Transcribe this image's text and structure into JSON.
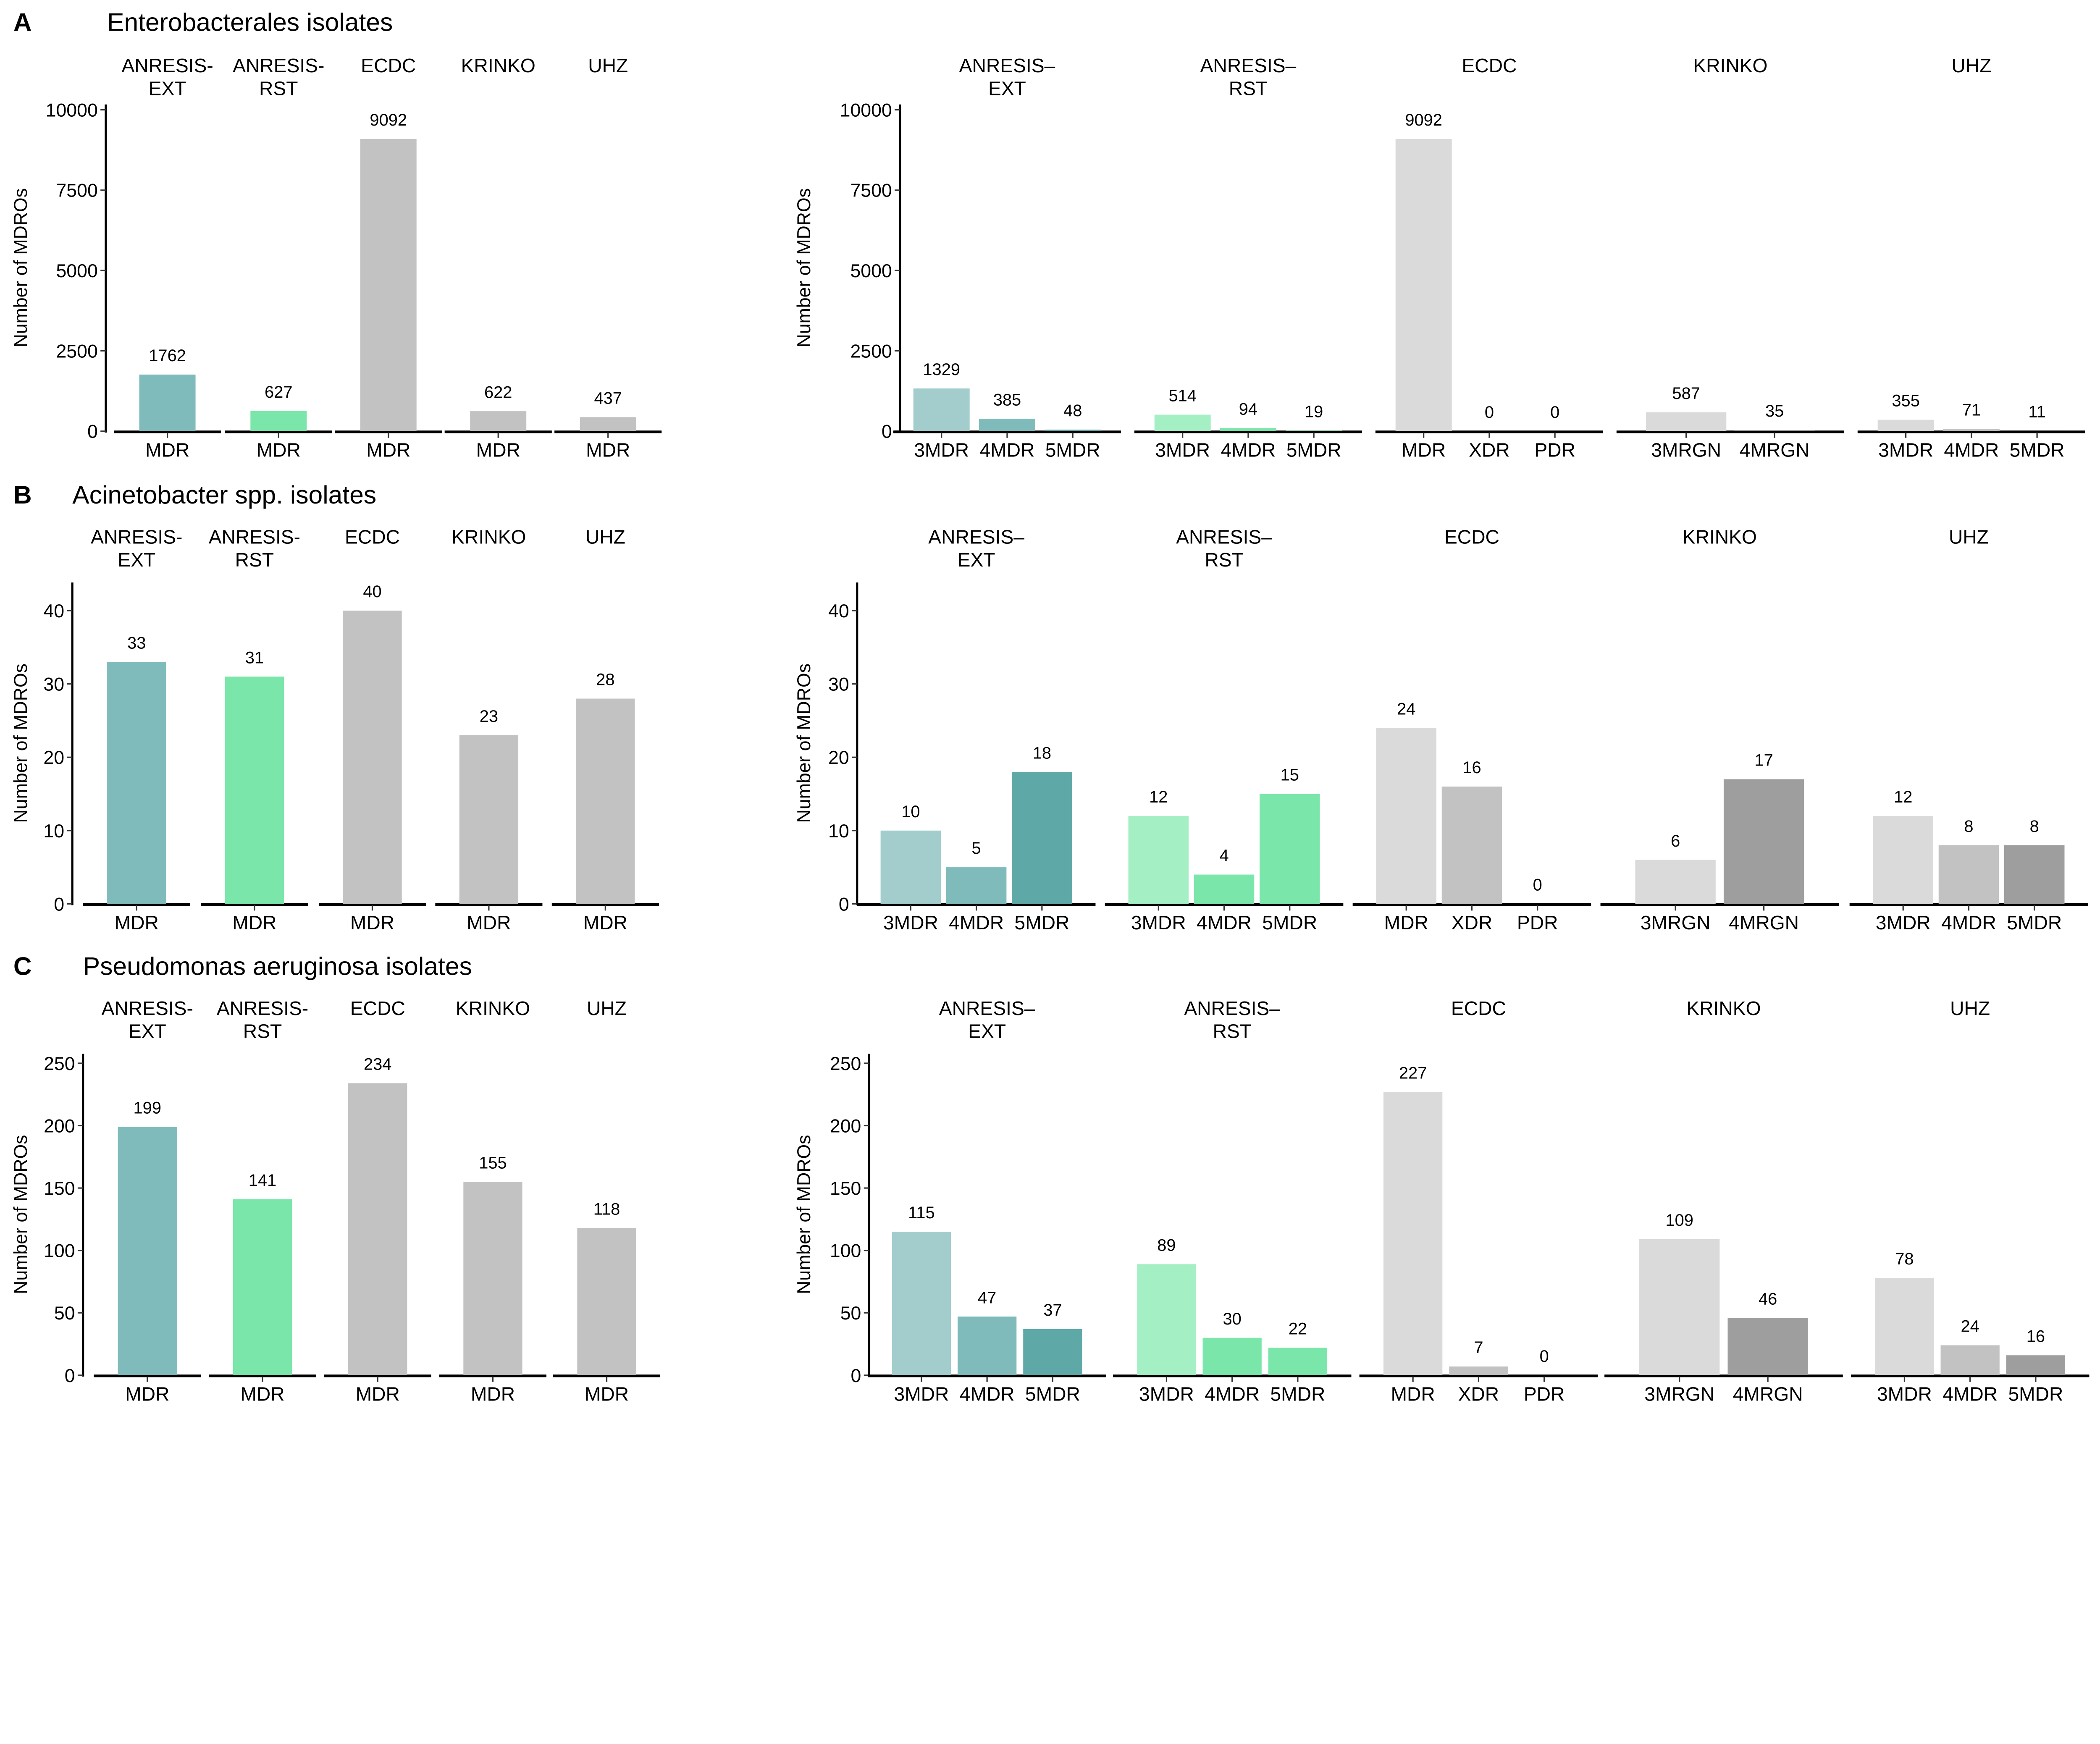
{
  "chart_data": [
    {
      "panel": "A",
      "title": "Enterobacterales isolates",
      "type": "bar",
      "ylabel": "Number of MDROs",
      "ylim": [
        0,
        10000
      ],
      "yticks": [
        0,
        2500,
        5000,
        7500,
        10000
      ],
      "left": {
        "facets": [
          {
            "label": [
              "ANRESIS-",
              "EXT"
            ],
            "bars": [
              {
                "cat": "MDR",
                "value": 1762,
                "color": "#80BBBB"
              }
            ]
          },
          {
            "label": [
              "ANRESIS-",
              "RST"
            ],
            "bars": [
              {
                "cat": "MDR",
                "value": 627,
                "color": "#7AE6AA"
              }
            ]
          },
          {
            "label": [
              "ECDC"
            ],
            "bars": [
              {
                "cat": "MDR",
                "value": 9092,
                "color": "#C2C2C2"
              }
            ]
          },
          {
            "label": [
              "KRINKO"
            ],
            "bars": [
              {
                "cat": "MDR",
                "value": 622,
                "color": "#C2C2C2"
              }
            ]
          },
          {
            "label": [
              "UHZ"
            ],
            "bars": [
              {
                "cat": "MDR",
                "value": 437,
                "color": "#C2C2C2"
              }
            ]
          }
        ]
      },
      "right": {
        "facets": [
          {
            "label": [
              "ANRESIS–",
              "EXT"
            ],
            "bars": [
              {
                "cat": "3MDR",
                "value": 1329,
                "color": "#A2CDCC"
              },
              {
                "cat": "4MDR",
                "value": 385,
                "color": "#80BBBB"
              },
              {
                "cat": "5MDR",
                "value": 48,
                "color": "#5FA8A8"
              }
            ]
          },
          {
            "label": [
              "ANRESIS–",
              "RST"
            ],
            "bars": [
              {
                "cat": "3MDR",
                "value": 514,
                "color": "#A5EFC5"
              },
              {
                "cat": "4MDR",
                "value": 94,
                "color": "#7AE6AA"
              },
              {
                "cat": "5MDR",
                "value": 19,
                "color": "#7AE6AA"
              }
            ]
          },
          {
            "label": [
              "ECDC"
            ],
            "bars": [
              {
                "cat": "MDR",
                "value": 9092,
                "color": "#DADADA"
              },
              {
                "cat": "XDR",
                "value": 0,
                "color": "#C2C2C2"
              },
              {
                "cat": "PDR",
                "value": 0,
                "color": "#9E9E9E"
              }
            ]
          },
          {
            "label": [
              "KRINKO"
            ],
            "bars": [
              {
                "cat": "3MRGN",
                "value": 587,
                "color": "#DADADA"
              },
              {
                "cat": "4MRGN",
                "value": 35,
                "color": "#9E9E9E"
              }
            ]
          },
          {
            "label": [
              "UHZ"
            ],
            "bars": [
              {
                "cat": "3MDR",
                "value": 355,
                "color": "#DADADA"
              },
              {
                "cat": "4MDR",
                "value": 71,
                "color": "#C2C2C2"
              },
              {
                "cat": "5MDR",
                "value": 11,
                "color": "#9E9E9E"
              }
            ]
          }
        ]
      }
    },
    {
      "panel": "B",
      "title": "Acinetobacter spp. isolates",
      "type": "bar",
      "ylabel": "Number of MDROs",
      "ylim": [
        0,
        44
      ],
      "yticks": [
        0,
        10,
        20,
        30,
        40
      ],
      "left": {
        "facets": [
          {
            "label": [
              "ANRESIS-",
              "EXT"
            ],
            "bars": [
              {
                "cat": "MDR",
                "value": 33,
                "color": "#80BBBB"
              }
            ]
          },
          {
            "label": [
              "ANRESIS-",
              "RST"
            ],
            "bars": [
              {
                "cat": "MDR",
                "value": 31,
                "color": "#7AE6AA"
              }
            ]
          },
          {
            "label": [
              "ECDC"
            ],
            "bars": [
              {
                "cat": "MDR",
                "value": 40,
                "color": "#C2C2C2"
              }
            ]
          },
          {
            "label": [
              "KRINKO"
            ],
            "bars": [
              {
                "cat": "MDR",
                "value": 23,
                "color": "#C2C2C2"
              }
            ]
          },
          {
            "label": [
              "UHZ"
            ],
            "bars": [
              {
                "cat": "MDR",
                "value": 28,
                "color": "#C2C2C2"
              }
            ]
          }
        ]
      },
      "right": {
        "facets": [
          {
            "label": [
              "ANRESIS–",
              "EXT"
            ],
            "bars": [
              {
                "cat": "3MDR",
                "value": 10,
                "color": "#A2CDCC"
              },
              {
                "cat": "4MDR",
                "value": 5,
                "color": "#80BBBB"
              },
              {
                "cat": "5MDR",
                "value": 18,
                "color": "#5FA8A8"
              }
            ]
          },
          {
            "label": [
              "ANRESIS–",
              "RST"
            ],
            "bars": [
              {
                "cat": "3MDR",
                "value": 12,
                "color": "#A5EFC5"
              },
              {
                "cat": "4MDR",
                "value": 4,
                "color": "#7AE6AA"
              },
              {
                "cat": "5MDR",
                "value": 15,
                "color": "#7AE6AA"
              }
            ]
          },
          {
            "label": [
              "ECDC"
            ],
            "bars": [
              {
                "cat": "MDR",
                "value": 24,
                "color": "#DADADA"
              },
              {
                "cat": "XDR",
                "value": 16,
                "color": "#C2C2C2"
              },
              {
                "cat": "PDR",
                "value": 0,
                "color": "#9E9E9E"
              }
            ]
          },
          {
            "label": [
              "KRINKO"
            ],
            "bars": [
              {
                "cat": "3MRGN",
                "value": 6,
                "color": "#DADADA"
              },
              {
                "cat": "4MRGN",
                "value": 17,
                "color": "#9E9E9E"
              }
            ]
          },
          {
            "label": [
              "UHZ"
            ],
            "bars": [
              {
                "cat": "3MDR",
                "value": 12,
                "color": "#DADADA"
              },
              {
                "cat": "4MDR",
                "value": 8,
                "color": "#C2C2C2"
              },
              {
                "cat": "5MDR",
                "value": 8,
                "color": "#9E9E9E"
              }
            ]
          }
        ]
      }
    },
    {
      "panel": "C",
      "title": "Pseudomonas aeruginosa isolates",
      "type": "bar",
      "ylabel": "Number of MDROs",
      "ylim": [
        0,
        258
      ],
      "yticks": [
        0,
        50,
        100,
        150,
        200,
        250
      ],
      "left": {
        "facets": [
          {
            "label": [
              "ANRESIS-",
              "EXT"
            ],
            "bars": [
              {
                "cat": "MDR",
                "value": 199,
                "color": "#80BBBB"
              }
            ]
          },
          {
            "label": [
              "ANRESIS-",
              "RST"
            ],
            "bars": [
              {
                "cat": "MDR",
                "value": 141,
                "color": "#7AE6AA"
              }
            ]
          },
          {
            "label": [
              "ECDC"
            ],
            "bars": [
              {
                "cat": "MDR",
                "value": 234,
                "color": "#C2C2C2"
              }
            ]
          },
          {
            "label": [
              "KRINKO"
            ],
            "bars": [
              {
                "cat": "MDR",
                "value": 155,
                "color": "#C2C2C2"
              }
            ]
          },
          {
            "label": [
              "UHZ"
            ],
            "bars": [
              {
                "cat": "MDR",
                "value": 118,
                "color": "#C2C2C2"
              }
            ]
          }
        ]
      },
      "right": {
        "facets": [
          {
            "label": [
              "ANRESIS–",
              "EXT"
            ],
            "bars": [
              {
                "cat": "3MDR",
                "value": 115,
                "color": "#A2CDCC"
              },
              {
                "cat": "4MDR",
                "value": 47,
                "color": "#80BBBB"
              },
              {
                "cat": "5MDR",
                "value": 37,
                "color": "#5FA8A8"
              }
            ]
          },
          {
            "label": [
              "ANRESIS–",
              "RST"
            ],
            "bars": [
              {
                "cat": "3MDR",
                "value": 89,
                "color": "#A5EFC5"
              },
              {
                "cat": "4MDR",
                "value": 30,
                "color": "#7AE6AA"
              },
              {
                "cat": "5MDR",
                "value": 22,
                "color": "#7AE6AA"
              }
            ]
          },
          {
            "label": [
              "ECDC"
            ],
            "bars": [
              {
                "cat": "MDR",
                "value": 227,
                "color": "#DADADA"
              },
              {
                "cat": "XDR",
                "value": 7,
                "color": "#C2C2C2"
              },
              {
                "cat": "PDR",
                "value": 0,
                "color": "#9E9E9E"
              }
            ]
          },
          {
            "label": [
              "KRINKO"
            ],
            "bars": [
              {
                "cat": "3MRGN",
                "value": 109,
                "color": "#DADADA"
              },
              {
                "cat": "4MRGN",
                "value": 46,
                "color": "#9E9E9E"
              }
            ]
          },
          {
            "label": [
              "UHZ"
            ],
            "bars": [
              {
                "cat": "3MDR",
                "value": 78,
                "color": "#DADADA"
              },
              {
                "cat": "4MDR",
                "value": 24,
                "color": "#C2C2C2"
              },
              {
                "cat": "5MDR",
                "value": 16,
                "color": "#9E9E9E"
              }
            ]
          }
        ]
      }
    }
  ]
}
